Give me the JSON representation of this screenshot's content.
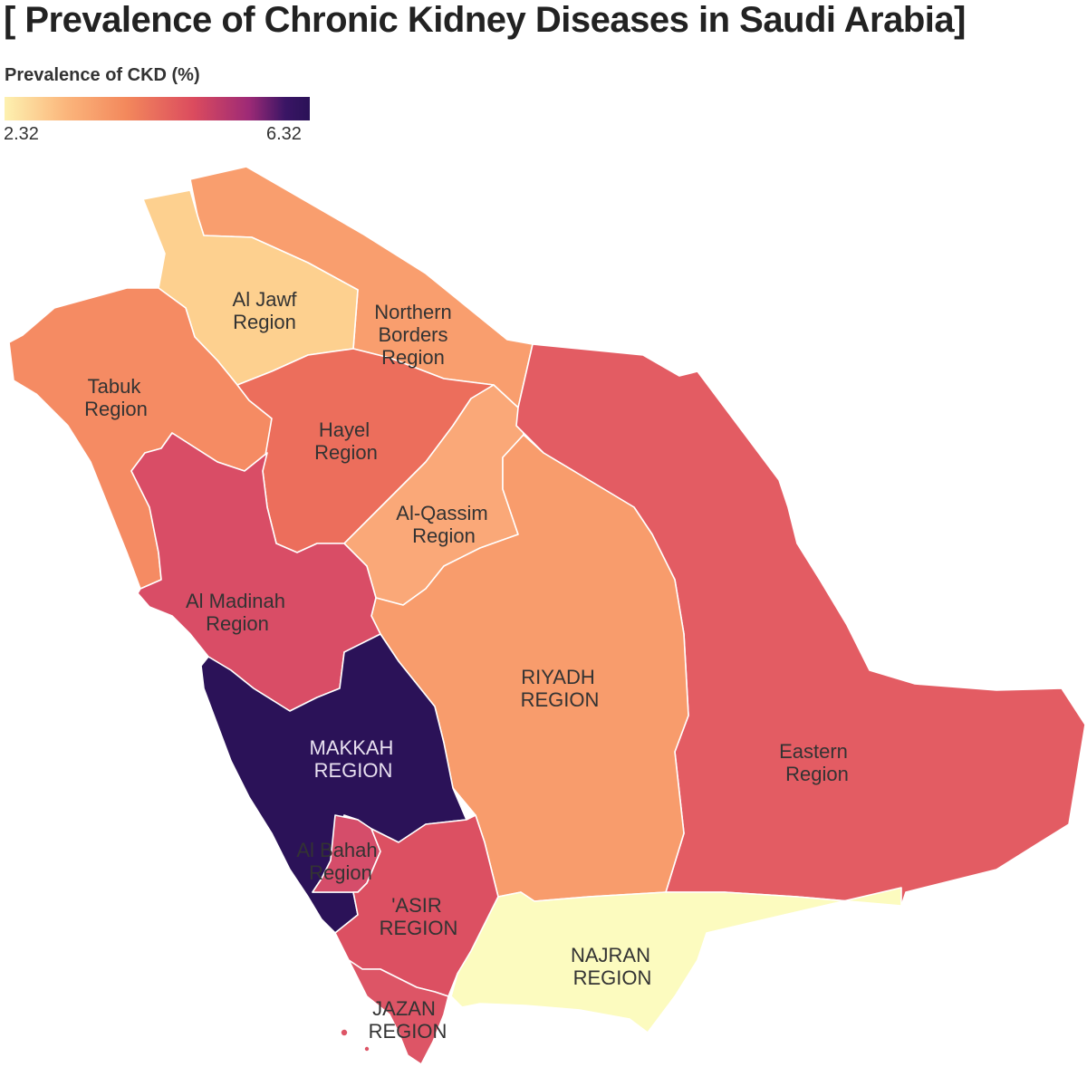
{
  "title": "[ Prevalence of Chronic Kidney Diseases in Saudi Arabia]",
  "legend": {
    "title": "Prevalence of CKD (%)",
    "min": "2.32",
    "max": "6.32"
  },
  "colors": {
    "al_jawf": "#fdd08f",
    "northern_borders": "#f99e6e",
    "tabuk": "#f58b63",
    "hayel": "#ec6e5c",
    "al_qassim": "#faa878",
    "riyadh": "#f89c6c",
    "eastern": "#e35c63",
    "al_madinah": "#d94d66",
    "makkah": "#2b1258",
    "al_bahah": "#d54d6a",
    "asir": "#dc5062",
    "jazan": "#dd5566",
    "najran": "#fcfbbf"
  },
  "regions": {
    "al_jawf": {
      "line1": "Al Jawf",
      "line2": "Region"
    },
    "northern_borders": {
      "line1": "Northern",
      "line2": "Borders",
      "line3": "Region"
    },
    "tabuk": {
      "line1": "Tabuk",
      "line2": "Region"
    },
    "hayel": {
      "line1": "Hayel",
      "line2": "Region"
    },
    "al_qassim": {
      "line1": "Al-Qassim",
      "line2": "Region"
    },
    "riyadh": {
      "line1": "RIYADH",
      "line2": "REGION"
    },
    "eastern": {
      "line1": "Eastern",
      "line2": "Region"
    },
    "al_madinah": {
      "line1": "Al Madinah",
      "line2": "Region"
    },
    "makkah": {
      "line1": "MAKKAH",
      "line2": "REGION"
    },
    "al_bahah": {
      "line1": "Al Bahah",
      "line2": "Region"
    },
    "asir": {
      "line1": "'ASIR",
      "line2": "REGION"
    },
    "jazan": {
      "line1": "JAZAN",
      "line2": "REGION"
    },
    "najran": {
      "line1": "NAJRAN",
      "line2": "REGION"
    }
  }
}
